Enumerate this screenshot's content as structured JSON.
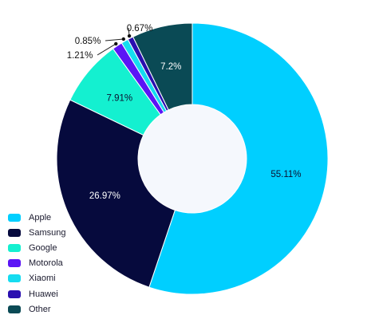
{
  "chart_data": {
    "type": "pie",
    "style": "donut",
    "title": "",
    "categories": [
      "Apple",
      "Samsung",
      "Google",
      "Motorola",
      "Xiaomi",
      "Huawei",
      "Other"
    ],
    "values": [
      55.11,
      26.97,
      7.91,
      1.21,
      0.85,
      0.67,
      7.2
    ],
    "labels": [
      "55.11%",
      "26.97%",
      "7.91%",
      "1.21%",
      "0.85%",
      "0.67%",
      "7.2%"
    ],
    "colors": [
      "#00CFFF",
      "#060A3D",
      "#14F0D0",
      "#5B15F5",
      "#15DCF0",
      "#2A0FB0",
      "#0A4A55"
    ],
    "legend_position": "bottom-left",
    "legend": [
      {
        "label": "Apple",
        "color": "#00CFFF"
      },
      {
        "label": "Samsung",
        "color": "#060A3D"
      },
      {
        "label": "Google",
        "color": "#14F0D0"
      },
      {
        "label": "Motorola",
        "color": "#5B15F5"
      },
      {
        "label": "Xiaomi",
        "color": "#15DCF0"
      },
      {
        "label": "Huawei",
        "color": "#2A0FB0"
      },
      {
        "label": "Other",
        "color": "#0A4A55"
      }
    ]
  }
}
